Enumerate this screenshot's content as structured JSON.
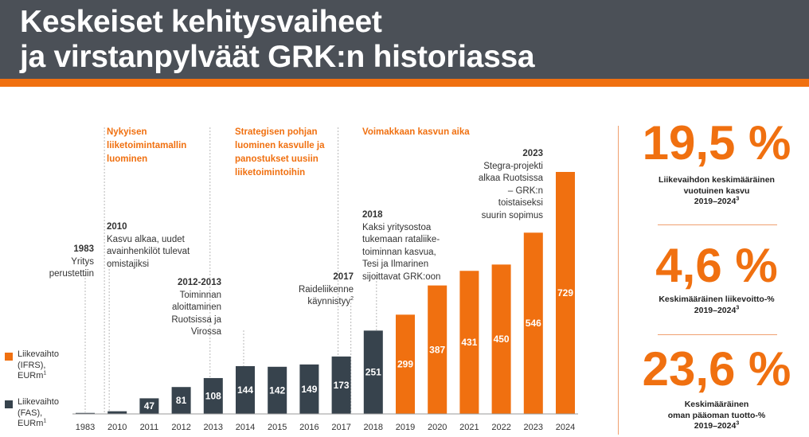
{
  "title": {
    "line1": "Keskeiset kehitysvaiheet",
    "line2": "ja virstanpylväät GRK:n historiassa"
  },
  "phases": [
    {
      "lines": [
        "Nykyisen",
        "liiketoimintamallin",
        "luominen"
      ]
    },
    {
      "lines": [
        "Strategisen pohjan",
        "luominen kasvulle ja",
        "panostukset uusiin",
        "liiketoimintoihin"
      ]
    },
    {
      "lines": [
        "Voimakkaan kasvun aika"
      ]
    }
  ],
  "milestones": [
    {
      "year": "1983",
      "lines": [
        "Yritys",
        "perustettiin"
      ]
    },
    {
      "year": "2010",
      "lines": [
        "Kasvu alkaa, uudet",
        "avainhenkilöt tulevat",
        "omistajiksi"
      ]
    },
    {
      "year": "2012-2013",
      "lines": [
        "Toiminnan",
        "aloittaminen",
        "Ruotsissa ja",
        "Virossa"
      ]
    },
    {
      "year": "2017",
      "lines": [
        "Raideliikenne",
        "käynnistyy"
      ],
      "sup": "2"
    },
    {
      "year": "2018",
      "lines": [
        "Kaksi yritysostoa",
        "tukemaan rataliike-",
        "toiminnan kasvua,",
        "Tesi ja Ilmarinen",
        "sijoittavat GRK:oon"
      ]
    },
    {
      "year": "2023",
      "lines": [
        "Stegra-projekti",
        "alkaa Ruotsissa",
        "– GRK:n",
        "toistaiseksi",
        "suurin sopimus"
      ]
    }
  ],
  "legend": [
    {
      "lines": [
        "Liikevaihto",
        "(IFRS),",
        "EURm"
      ],
      "sup": "1",
      "color": "#f07010"
    },
    {
      "lines": [
        "Liikevaihto",
        "(FAS),",
        "EURm"
      ],
      "sup": "1",
      "color": "#37434d"
    }
  ],
  "kpis": [
    {
      "value": "19,5 %",
      "lines": [
        "Liikevaihdon keskimääräinen",
        "vuotuinen kasvu",
        "2019–2024"
      ],
      "sup": "3"
    },
    {
      "value": "4,6 %",
      "lines": [
        "Keskimääräinen liikevoitto-%",
        "2019–2024"
      ],
      "sup": "3"
    },
    {
      "value": "23,6 %",
      "lines": [
        "Keskimääräinen",
        "oman pääoman tuotto-%",
        "2019–2024"
      ],
      "sup": "3"
    }
  ],
  "chart_data": {
    "type": "bar",
    "title": "",
    "xlabel": "",
    "ylabel": "",
    "categories": [
      "1983",
      "2010",
      "2011",
      "2012",
      "2013",
      "2014",
      "2015",
      "2016",
      "2017",
      "2018",
      "2019",
      "2020",
      "2021",
      "2022",
      "2023",
      "2024"
    ],
    "series": [
      {
        "name": "Liikevaihto (FAS), EURm",
        "color": "#37434d",
        "values": [
          3,
          8,
          47,
          81,
          108,
          144,
          142,
          149,
          173,
          251,
          null,
          null,
          null,
          null,
          null,
          null
        ],
        "labels": [
          null,
          null,
          "47",
          "81",
          "108",
          "144",
          "142",
          "149",
          "173",
          "251",
          null,
          null,
          null,
          null,
          null,
          null
        ]
      },
      {
        "name": "Liikevaihto (IFRS), EURm",
        "color": "#f07010",
        "values": [
          null,
          null,
          null,
          null,
          null,
          null,
          null,
          null,
          null,
          null,
          299,
          387,
          431,
          450,
          546,
          729
        ],
        "labels": [
          null,
          null,
          null,
          null,
          null,
          null,
          null,
          null,
          null,
          null,
          "299",
          "387",
          "431",
          "450",
          "546",
          "729"
        ]
      }
    ],
    "ylim": [
      0,
      729
    ],
    "grid": false,
    "legend": "left"
  }
}
